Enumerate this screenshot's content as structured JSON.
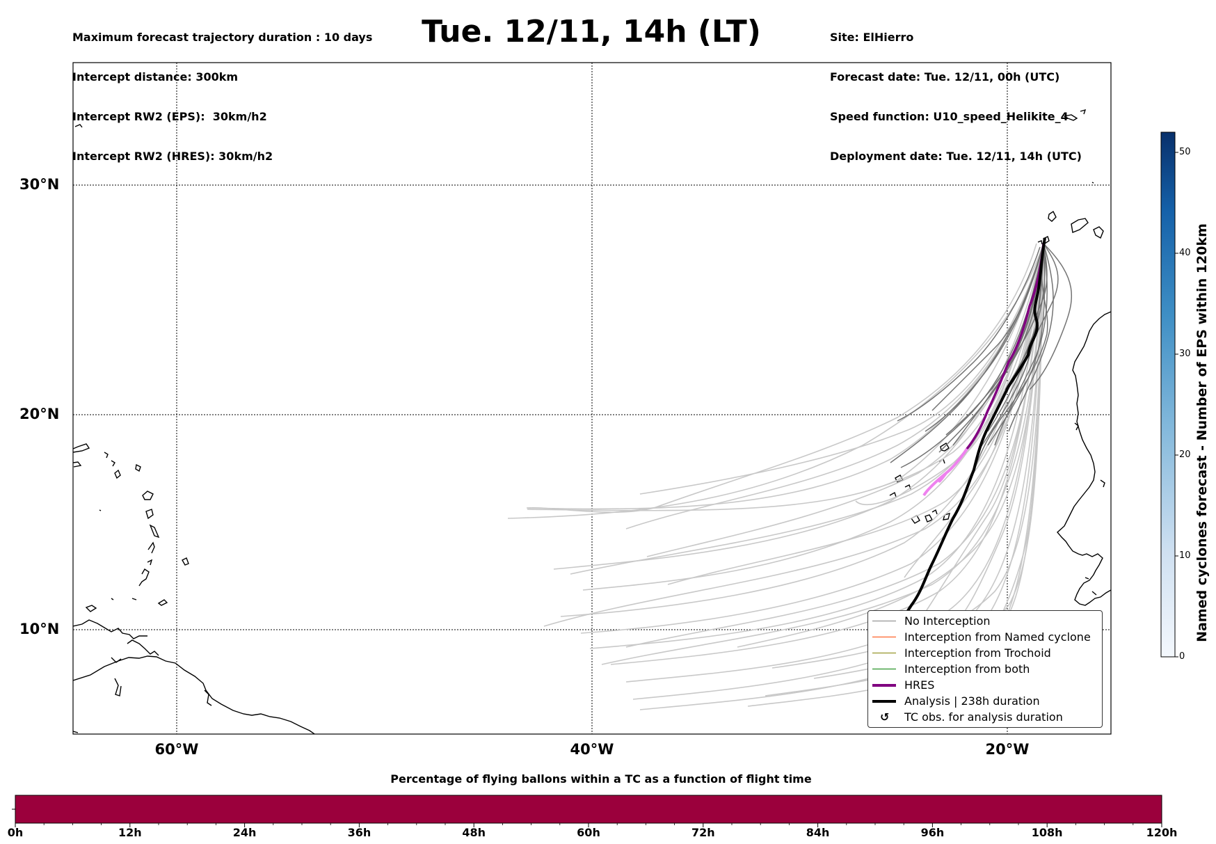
{
  "header": {
    "info_left": [
      "Maximum forecast trajectory duration : 10 days",
      "Intercept distance: 300km",
      "Intercept RW2 (EPS):  30km/h2",
      "Intercept RW2 (HRES): 30km/h2"
    ],
    "title": "Tue. 12/11, 14h (LT)",
    "info_right": [
      "Site: ElHierro",
      "Forecast date: Tue. 12/11, 00h (UTC)",
      "Speed function: U10_speed_Helikite_4",
      "Deployment date: Tue. 12/11, 14h (UTC)"
    ]
  },
  "map": {
    "lat_labels": [
      "30°N",
      "20°N",
      "10°N"
    ],
    "lon_labels": [
      "60°W",
      "40°W",
      "20°W"
    ],
    "lon_range": [
      -65,
      -15
    ],
    "lat_range": [
      5,
      36.3
    ],
    "launch_point": {
      "lon": -17.9,
      "lat": 27.7
    },
    "analysis_end": {
      "lon": -23.0,
      "lat": 11.3
    },
    "hres_end": {
      "lon": -22.9,
      "lat": 16.1
    }
  },
  "legend": {
    "items": [
      {
        "label": "No Interception",
        "color": "#808080"
      },
      {
        "label": "Interception from Named cyclone",
        "color": "#ff4500"
      },
      {
        "label": "Interception from Trochoid",
        "color": "#808000"
      },
      {
        "label": "Interception from both",
        "color": "#008000"
      },
      {
        "label": "HRES",
        "color": "#800080"
      },
      {
        "label": "Analysis | 238h duration",
        "color": "#000000"
      },
      {
        "label": "TC obs. for analysis duration",
        "color": "#000000"
      }
    ],
    "tc_symbol": "↺"
  },
  "colorbar": {
    "label": "Named cyclones forecast - Number of EPS within 120km",
    "ticks": [
      "0",
      "10",
      "20",
      "30",
      "40",
      "50"
    ],
    "max": 52,
    "colors": [
      "#f7fbff",
      "#08306b"
    ]
  },
  "bottom_bar": {
    "title": "Percentage of flying ballons within a TC as a function of flight time",
    "time_labels": [
      "0h",
      "12h",
      "24h",
      "36h",
      "48h",
      "60h",
      "72h",
      "84h",
      "96h",
      "108h",
      "120h"
    ],
    "color": "#9b003c"
  }
}
